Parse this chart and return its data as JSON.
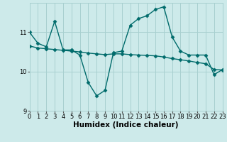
{
  "x": [
    0,
    1,
    2,
    3,
    4,
    5,
    6,
    7,
    8,
    9,
    10,
    11,
    12,
    13,
    14,
    15,
    16,
    17,
    18,
    19,
    20,
    21,
    22,
    23
  ],
  "line1": [
    11.0,
    10.72,
    10.63,
    11.28,
    10.55,
    10.55,
    10.42,
    9.72,
    9.38,
    9.52,
    10.48,
    10.52,
    11.18,
    11.35,
    11.42,
    11.58,
    11.65,
    10.88,
    10.52,
    10.42,
    10.42,
    10.42,
    9.92,
    10.05
  ],
  "line2": [
    10.65,
    10.6,
    10.58,
    10.56,
    10.54,
    10.52,
    10.5,
    10.47,
    10.45,
    10.43,
    10.45,
    10.45,
    10.43,
    10.42,
    10.41,
    10.4,
    10.37,
    10.33,
    10.3,
    10.27,
    10.23,
    10.2,
    10.05,
    10.04
  ],
  "line_color": "#006b6b",
  "background_color": "#cdeaea",
  "grid_color": "#a8d0d0",
  "xlim": [
    0,
    23
  ],
  "ylim": [
    9.0,
    11.75
  ],
  "yticks": [
    9,
    10,
    11
  ],
  "xticks": [
    0,
    1,
    2,
    3,
    4,
    5,
    6,
    7,
    8,
    9,
    10,
    11,
    12,
    13,
    14,
    15,
    16,
    17,
    18,
    19,
    20,
    21,
    22,
    23
  ],
  "xlabel": "Humidex (Indice chaleur)",
  "marker": "D",
  "markersize": 2.5,
  "linewidth": 1.0,
  "xlabel_fontsize": 7.5,
  "tick_fontsize": 6.0
}
